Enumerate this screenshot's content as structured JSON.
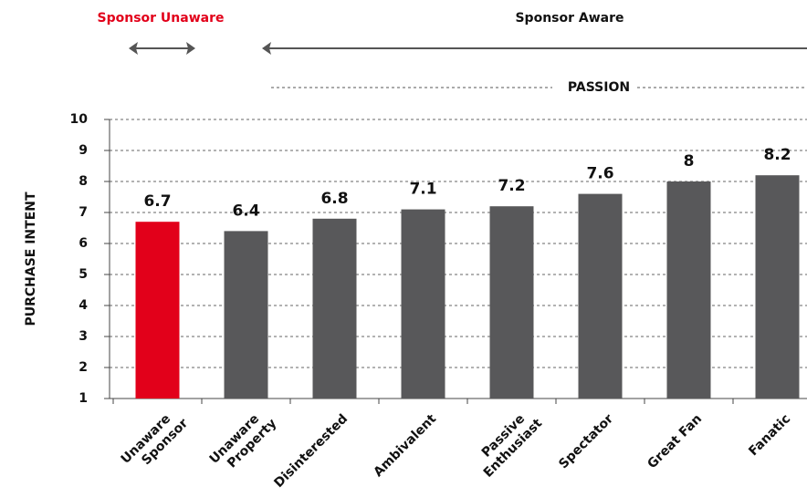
{
  "chart_data": {
    "type": "bar",
    "annotations": {
      "unaware": "Sponsor Unaware",
      "aware": "Sponsor Aware",
      "passion": "PASSION"
    },
    "ylabel": "PURCHASE INTENT",
    "categories": [
      [
        "Unaware",
        "Sponsor"
      ],
      [
        "Unaware",
        "Property"
      ],
      [
        "Disinterested"
      ],
      [
        "Ambivalent"
      ],
      [
        "Passive",
        "Enthusiast"
      ],
      [
        "Spectator"
      ],
      [
        "Great Fan"
      ],
      [
        "Fanatic"
      ]
    ],
    "values": [
      6.7,
      6.4,
      6.8,
      7.1,
      7.2,
      7.6,
      8,
      8.2
    ],
    "colors": [
      "#e2001a",
      "#58585a",
      "#58585a",
      "#58585a",
      "#58585a",
      "#58585a",
      "#58585a",
      "#58585a"
    ],
    "ylim": [
      1,
      10
    ],
    "yticks": [
      1,
      2,
      3,
      4,
      5,
      6,
      7,
      8,
      9,
      10
    ],
    "grid": true
  }
}
